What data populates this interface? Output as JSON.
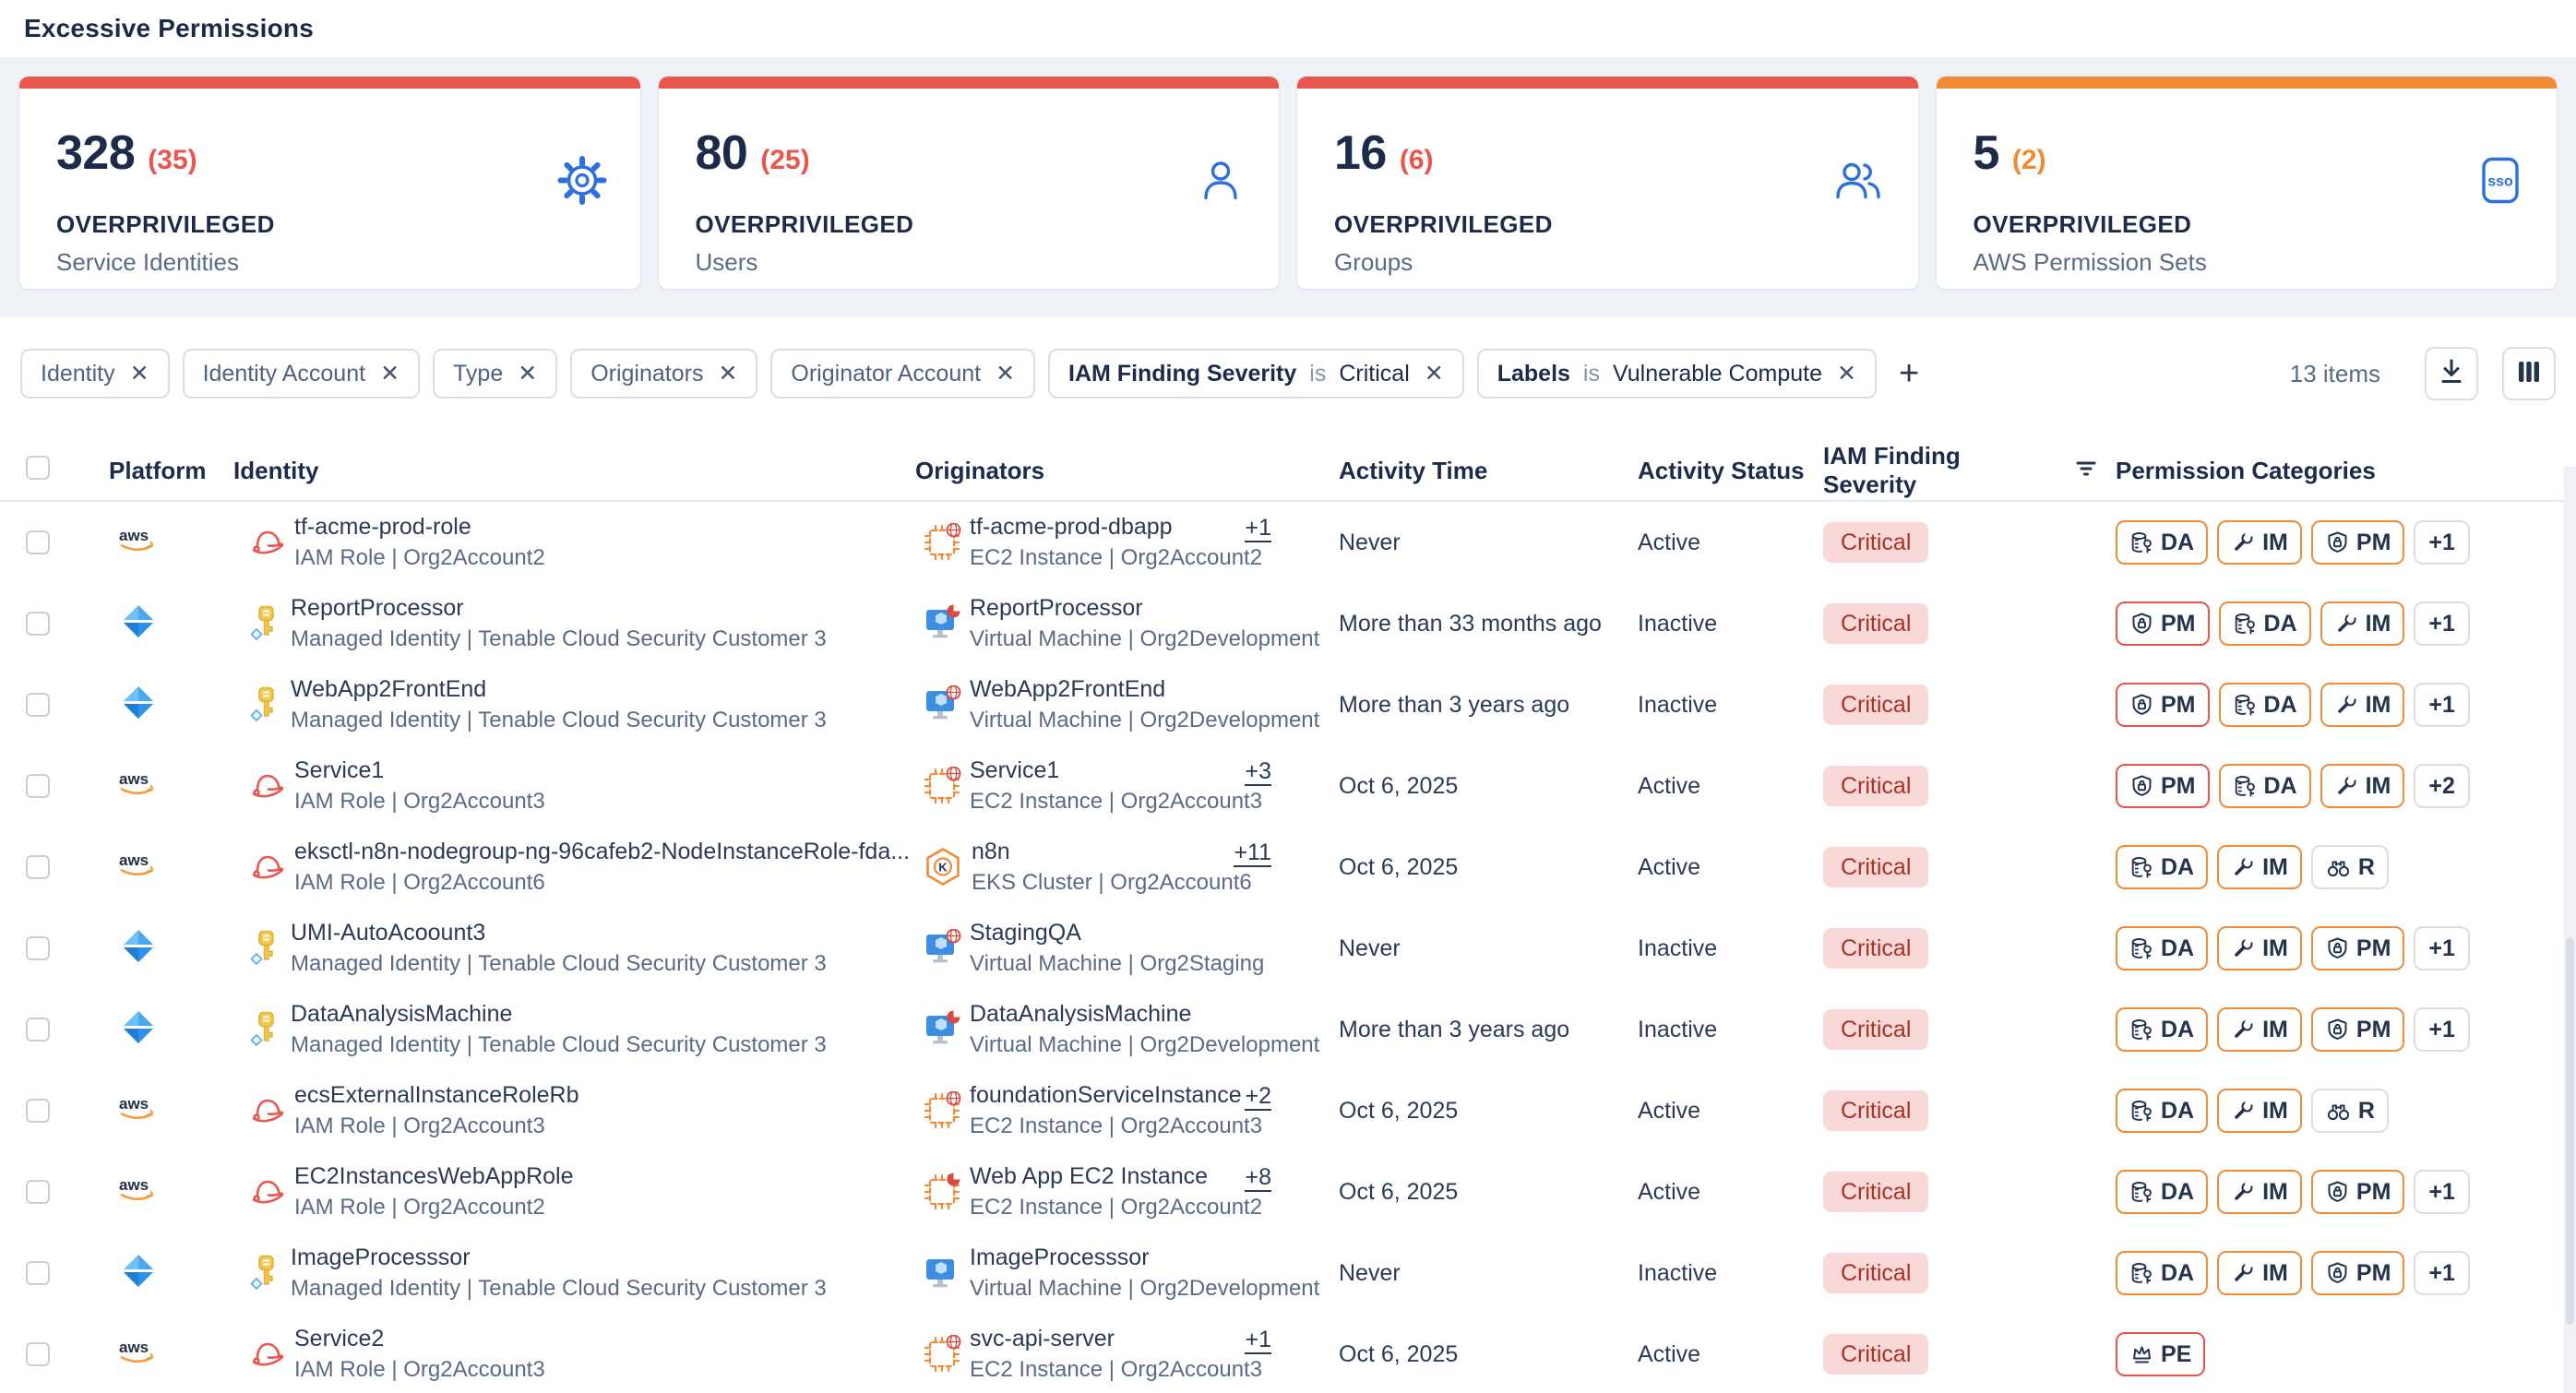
{
  "page": {
    "title": "Excessive Permissions"
  },
  "colors": {
    "red_accent": "#e9564e",
    "orange_accent": "#f08a33",
    "icon_blue": "#2e6fe0",
    "critical_bg": "#f8d9d7",
    "critical_text": "#a93226"
  },
  "summary_cards": [
    {
      "value": "328",
      "delta": "(35)",
      "label": "OVERPRIVILEGED",
      "sublabel": "Service Identities",
      "icon": "gear-icon",
      "accent": "#e9564e"
    },
    {
      "value": "80",
      "delta": "(25)",
      "label": "OVERPRIVILEGED",
      "sublabel": "Users",
      "icon": "user-icon",
      "accent": "#e9564e"
    },
    {
      "value": "16",
      "delta": "(6)",
      "label": "OVERPRIVILEGED",
      "sublabel": "Groups",
      "icon": "users-icon",
      "accent": "#e9564e"
    },
    {
      "value": "5",
      "delta": "(2)",
      "label": "OVERPRIVILEGED",
      "sublabel": "AWS Permission Sets",
      "icon": "sso-icon",
      "accent": "#f08a33"
    }
  ],
  "filters": {
    "chips": [
      {
        "label": "Identity"
      },
      {
        "label": "Identity Account"
      },
      {
        "label": "Type"
      },
      {
        "label": "Originators"
      },
      {
        "label": "Originator Account"
      },
      {
        "label": "IAM Finding Severity",
        "op": "is",
        "value": "Critical"
      },
      {
        "label": "Labels",
        "op": "is",
        "value": "Vulnerable Compute"
      }
    ],
    "add_label": "+",
    "items_count": "13 items",
    "close_glyph": "✕"
  },
  "table": {
    "columns": [
      "Platform",
      "Identity",
      "Originators",
      "Activity Time",
      "Activity Status",
      "IAM Finding Severity",
      "Permission Categories"
    ],
    "rows": [
      {
        "platform": "aws",
        "identity": {
          "icon": "iam-role-icon",
          "name": "tf-acme-prod-role",
          "meta": "IAM Role | Org2Account2"
        },
        "originator": {
          "icon": "ec2-instance-icon",
          "badge": "globe",
          "name": "tf-acme-prod-dbapp",
          "more": "+1",
          "meta": "EC2 Instance | Org2Account2"
        },
        "activity_time": "Never",
        "activity_status": "Active",
        "severity": "Critical",
        "permissions": [
          {
            "code": "DA",
            "icon": "data-access-icon",
            "variant": "orange"
          },
          {
            "code": "IM",
            "icon": "infrastructure-modification-icon",
            "variant": "orange"
          },
          {
            "code": "PM",
            "icon": "permission-management-icon",
            "variant": "orange"
          },
          {
            "more": "+1"
          }
        ]
      },
      {
        "platform": "azure",
        "identity": {
          "icon": "managed-identity-icon",
          "name": "ReportProcessor",
          "meta": "Managed Identity | Tenable Cloud Security Customer 3"
        },
        "originator": {
          "icon": "virtual-machine-icon",
          "badge": "pie",
          "name": "ReportProcessor",
          "more": null,
          "meta": "Virtual Machine | Org2Development"
        },
        "activity_time": "More than 33 months ago",
        "activity_status": "Inactive",
        "severity": "Critical",
        "permissions": [
          {
            "code": "PM",
            "icon": "permission-management-icon",
            "variant": "red"
          },
          {
            "code": "DA",
            "icon": "data-access-icon",
            "variant": "orange"
          },
          {
            "code": "IM",
            "icon": "infrastructure-modification-icon",
            "variant": "orange"
          },
          {
            "more": "+1"
          }
        ]
      },
      {
        "platform": "azure",
        "identity": {
          "icon": "managed-identity-icon",
          "name": "WebApp2FrontEnd",
          "meta": "Managed Identity | Tenable Cloud Security Customer 3"
        },
        "originator": {
          "icon": "virtual-machine-icon",
          "badge": "globe",
          "name": "WebApp2FrontEnd",
          "more": null,
          "meta": "Virtual Machine | Org2Development"
        },
        "activity_time": "More than 3 years ago",
        "activity_status": "Inactive",
        "severity": "Critical",
        "permissions": [
          {
            "code": "PM",
            "icon": "permission-management-icon",
            "variant": "red"
          },
          {
            "code": "DA",
            "icon": "data-access-icon",
            "variant": "orange"
          },
          {
            "code": "IM",
            "icon": "infrastructure-modification-icon",
            "variant": "orange"
          },
          {
            "more": "+1"
          }
        ]
      },
      {
        "platform": "aws",
        "identity": {
          "icon": "iam-role-icon",
          "name": "Service1",
          "meta": "IAM Role | Org2Account3"
        },
        "originator": {
          "icon": "ec2-instance-icon",
          "badge": "globe",
          "name": "Service1",
          "more": "+3",
          "meta": "EC2 Instance | Org2Account3"
        },
        "activity_time": "Oct 6, 2025",
        "activity_status": "Active",
        "severity": "Critical",
        "permissions": [
          {
            "code": "PM",
            "icon": "permission-management-icon",
            "variant": "red"
          },
          {
            "code": "DA",
            "icon": "data-access-icon",
            "variant": "orange"
          },
          {
            "code": "IM",
            "icon": "infrastructure-modification-icon",
            "variant": "orange"
          },
          {
            "more": "+2"
          }
        ]
      },
      {
        "platform": "aws",
        "identity": {
          "icon": "iam-role-icon",
          "name": "eksctl-n8n-nodegroup-ng-96cafeb2-NodeInstanceRole-fda...",
          "meta": "IAM Role | Org2Account6"
        },
        "originator": {
          "icon": "eks-cluster-icon",
          "badge": null,
          "name": "n8n",
          "more": "+11",
          "meta": "EKS Cluster | Org2Account6"
        },
        "activity_time": "Oct 6, 2025",
        "activity_status": "Active",
        "severity": "Critical",
        "permissions": [
          {
            "code": "DA",
            "icon": "data-access-icon",
            "variant": "orange"
          },
          {
            "code": "IM",
            "icon": "infrastructure-modification-icon",
            "variant": "orange"
          },
          {
            "code": "R",
            "icon": "reconnaissance-icon",
            "variant": "gray"
          }
        ]
      },
      {
        "platform": "azure",
        "identity": {
          "icon": "managed-identity-icon",
          "name": "UMI-AutoAcoount3",
          "meta": "Managed Identity | Tenable Cloud Security Customer 3"
        },
        "originator": {
          "icon": "virtual-machine-icon",
          "badge": "globe",
          "name": "StagingQA",
          "more": null,
          "meta": "Virtual Machine | Org2Staging"
        },
        "activity_time": "Never",
        "activity_status": "Inactive",
        "severity": "Critical",
        "permissions": [
          {
            "code": "DA",
            "icon": "data-access-icon",
            "variant": "orange"
          },
          {
            "code": "IM",
            "icon": "infrastructure-modification-icon",
            "variant": "orange"
          },
          {
            "code": "PM",
            "icon": "permission-management-icon",
            "variant": "orange"
          },
          {
            "more": "+1"
          }
        ]
      },
      {
        "platform": "azure",
        "identity": {
          "icon": "managed-identity-icon",
          "name": "DataAnalysisMachine",
          "meta": "Managed Identity | Tenable Cloud Security Customer 3"
        },
        "originator": {
          "icon": "virtual-machine-icon",
          "badge": "pie",
          "name": "DataAnalysisMachine",
          "more": null,
          "meta": "Virtual Machine | Org2Development"
        },
        "activity_time": "More than 3 years ago",
        "activity_status": "Inactive",
        "severity": "Critical",
        "permissions": [
          {
            "code": "DA",
            "icon": "data-access-icon",
            "variant": "orange"
          },
          {
            "code": "IM",
            "icon": "infrastructure-modification-icon",
            "variant": "orange"
          },
          {
            "code": "PM",
            "icon": "permission-management-icon",
            "variant": "orange"
          },
          {
            "more": "+1"
          }
        ]
      },
      {
        "platform": "aws",
        "identity": {
          "icon": "iam-role-icon",
          "name": "ecsExternalInstanceRoleRb",
          "meta": "IAM Role | Org2Account3"
        },
        "originator": {
          "icon": "ec2-instance-icon",
          "badge": "globe",
          "name": "foundationServiceInstance",
          "more": "+2",
          "meta": "EC2 Instance | Org2Account3"
        },
        "activity_time": "Oct 6, 2025",
        "activity_status": "Active",
        "severity": "Critical",
        "permissions": [
          {
            "code": "DA",
            "icon": "data-access-icon",
            "variant": "orange"
          },
          {
            "code": "IM",
            "icon": "infrastructure-modification-icon",
            "variant": "orange"
          },
          {
            "code": "R",
            "icon": "reconnaissance-icon",
            "variant": "gray"
          }
        ]
      },
      {
        "platform": "aws",
        "identity": {
          "icon": "iam-role-icon",
          "name": "EC2InstancesWebAppRole",
          "meta": "IAM Role | Org2Account2"
        },
        "originator": {
          "icon": "ec2-instance-icon",
          "badge": "pie",
          "name": "Web App EC2 Instance",
          "more": "+8",
          "meta": "EC2 Instance | Org2Account2"
        },
        "activity_time": "Oct 6, 2025",
        "activity_status": "Active",
        "severity": "Critical",
        "permissions": [
          {
            "code": "DA",
            "icon": "data-access-icon",
            "variant": "orange"
          },
          {
            "code": "IM",
            "icon": "infrastructure-modification-icon",
            "variant": "orange"
          },
          {
            "code": "PM",
            "icon": "permission-management-icon",
            "variant": "orange"
          },
          {
            "more": "+1"
          }
        ]
      },
      {
        "platform": "azure",
        "identity": {
          "icon": "managed-identity-icon",
          "name": "ImageProcesssor",
          "meta": "Managed Identity | Tenable Cloud Security Customer 3"
        },
        "originator": {
          "icon": "virtual-machine-icon",
          "badge": null,
          "name": "ImageProcesssor",
          "more": null,
          "meta": "Virtual Machine | Org2Development"
        },
        "activity_time": "Never",
        "activity_status": "Inactive",
        "severity": "Critical",
        "permissions": [
          {
            "code": "DA",
            "icon": "data-access-icon",
            "variant": "orange"
          },
          {
            "code": "IM",
            "icon": "infrastructure-modification-icon",
            "variant": "orange"
          },
          {
            "code": "PM",
            "icon": "permission-management-icon",
            "variant": "orange"
          },
          {
            "more": "+1"
          }
        ]
      },
      {
        "platform": "aws",
        "identity": {
          "icon": "iam-role-icon",
          "name": "Service2",
          "meta": "IAM Role | Org2Account3"
        },
        "originator": {
          "icon": "ec2-instance-icon",
          "badge": "globe",
          "name": "svc-api-server",
          "more": "+1",
          "meta": "EC2 Instance | Org2Account3"
        },
        "activity_time": "Oct 6, 2025",
        "activity_status": "Active",
        "severity": "Critical",
        "permissions": [
          {
            "code": "PE",
            "icon": "privilege-escalation-icon",
            "variant": "red"
          }
        ]
      }
    ]
  }
}
